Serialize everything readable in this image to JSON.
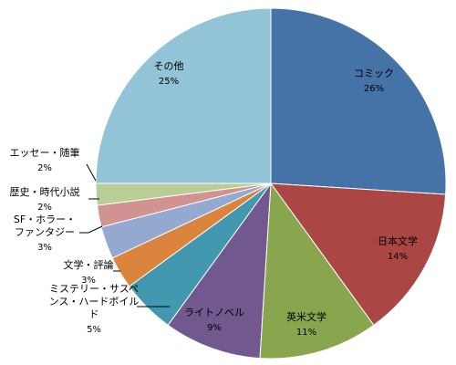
{
  "chart_data": {
    "type": "pie",
    "title": "",
    "start_angle_deg": -90,
    "direction": "clockwise",
    "slices": [
      {
        "label": "コミック",
        "label_lines": [
          "コミック"
        ],
        "percent_label": "26%",
        "value": 26,
        "color": "#4572A7"
      },
      {
        "label": "日本文学",
        "label_lines": [
          "日本文学"
        ],
        "percent_label": "14%",
        "value": 14,
        "color": "#AA4643"
      },
      {
        "label": "英米文学",
        "label_lines": [
          "英米文学"
        ],
        "percent_label": "11%",
        "value": 11,
        "color": "#89A54E"
      },
      {
        "label": "ライトノベル",
        "label_lines": [
          "ライトノベル"
        ],
        "percent_label": "9%",
        "value": 9,
        "color": "#71588F"
      },
      {
        "label": "ミステリー・サスペンス・ハードボイルド",
        "label_lines": [
          "ミステリー・サスペ",
          "ンス・ハードボイル",
          "ド"
        ],
        "percent_label": "5%",
        "value": 5,
        "color": "#4198AF"
      },
      {
        "label": "文学・評論",
        "label_lines": [
          "文学・評論"
        ],
        "percent_label": "3%",
        "value": 3,
        "color": "#DB843D"
      },
      {
        "label": "SF・ホラー・ファンタジー",
        "label_lines": [
          "SF・ホラー・",
          "ファンタジー"
        ],
        "percent_label": "3%",
        "value": 3,
        "color": "#93A9CF"
      },
      {
        "label": "歴史・時代小説",
        "label_lines": [
          "歴史・時代小説"
        ],
        "percent_label": "2%",
        "value": 2,
        "color": "#D19392"
      },
      {
        "label": "エッセー・随筆",
        "label_lines": [
          "エッセー・随筆"
        ],
        "percent_label": "2%",
        "value": 2,
        "color": "#B9CD96"
      },
      {
        "label": "その他",
        "label_lines": [
          "その他"
        ],
        "percent_label": "25%",
        "value": 25,
        "color": "#92C3D6"
      }
    ]
  }
}
